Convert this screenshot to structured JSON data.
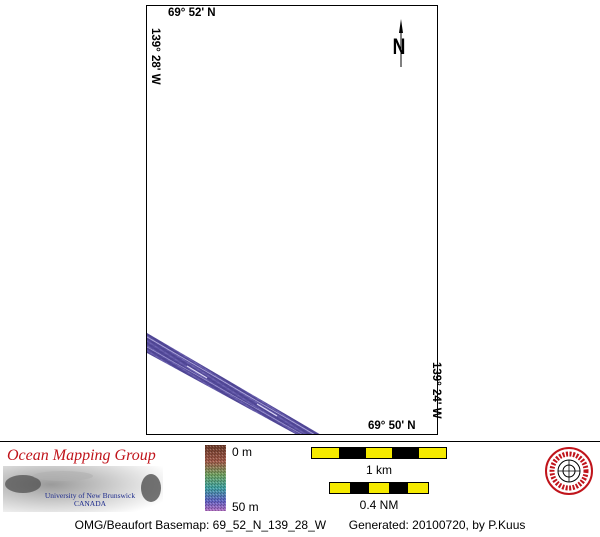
{
  "map": {
    "lat_north": "69° 52' N",
    "lat_south": "69° 50' N",
    "lon_west": "139° 28' W",
    "lon_east": "139° 24' W",
    "north_arrow_label": "N",
    "swath_color": "#5a4fa0"
  },
  "footer": {
    "group_name": "Ocean Mapping Group",
    "university_line1": "University of New Brunswick",
    "university_line2": "CANADA",
    "depth_top": "0 m",
    "depth_bottom": "50 m",
    "scale_km": "1 km",
    "scale_nm": "0.4 NM",
    "caption_left": "OMG/Beaufort Basemap: 69_52_N_139_28_W",
    "caption_right": "Generated: 20100720, by P.Kuus",
    "scale_colors": [
      "#f5ea00",
      "#000000"
    ]
  }
}
